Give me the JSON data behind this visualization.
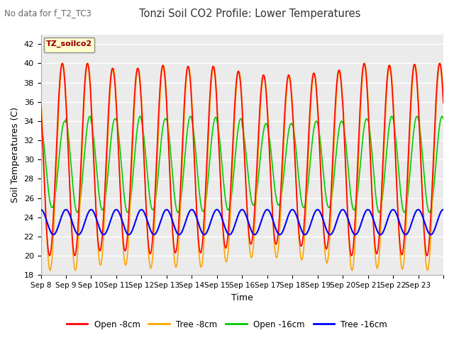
{
  "title": "Tonzi Soil CO2 Profile: Lower Temperatures",
  "subtitle": "No data for f_T2_TC3",
  "ylabel": "Soil Temperatures (C)",
  "xlabel": "Time",
  "ylim": [
    18,
    43
  ],
  "yticks": [
    18,
    20,
    22,
    24,
    26,
    28,
    30,
    32,
    34,
    36,
    38,
    40,
    42
  ],
  "legend_label": "TZ_soilco2",
  "legend_entries": [
    "Open -8cm",
    "Tree -8cm",
    "Open -16cm",
    "Tree -16cm"
  ],
  "legend_colors": [
    "#ff0000",
    "#ffa500",
    "#00cc00",
    "#0000ff"
  ],
  "colors": {
    "open8": "#ff0000",
    "tree8": "#ffa500",
    "open16": "#00cc00",
    "tree16": "#0000ff"
  },
  "background_color": "#ffffff",
  "plot_bg_color": "#ebebeb",
  "grid_color": "#ffffff",
  "n_days": 16,
  "start_day": 8,
  "xtick_labels": [
    "Sep 8",
    "Sep 9",
    "Sep 10",
    "Sep 11",
    "Sep 12",
    "Sep 13",
    "Sep 14",
    "Sep 15",
    "Sep 16",
    "Sep 17",
    "Sep 18",
    "Sep 19",
    "Sep 20",
    "Sep 21",
    "Sep 22",
    "Sep 23"
  ]
}
